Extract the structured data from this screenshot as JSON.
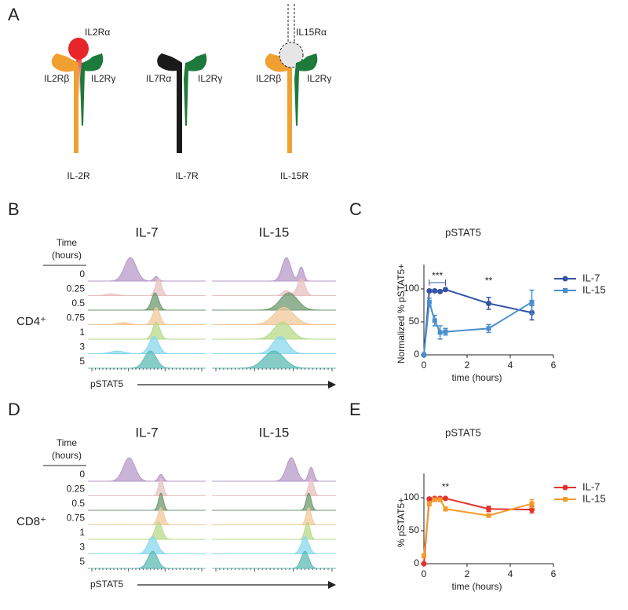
{
  "panel_a": {
    "letter": "A",
    "receptors": [
      {
        "name": "IL-2R",
        "labels": [
          "IL2Rα",
          "IL2Rβ",
          "IL2Rγ"
        ]
      },
      {
        "name": "IL-7R",
        "labels": [
          "IL7Rα",
          "IL2Rγ"
        ]
      },
      {
        "name": "IL-15R",
        "labels": [
          "IL15Rα",
          "IL2Rβ",
          "IL2Rγ"
        ]
      }
    ]
  },
  "panel_b": {
    "letter": "B",
    "cell": "CD4⁺",
    "columns": [
      "IL-7",
      "IL-15"
    ],
    "time_header": [
      "Time",
      "(hours)"
    ],
    "times": [
      "0",
      "0.25",
      "0.5",
      "0.75",
      "1",
      "3",
      "5"
    ],
    "axis_label": "pSTAT5"
  },
  "panel_d": {
    "letter": "D",
    "cell": "CD8⁺",
    "columns": [
      "IL-7",
      "IL-15"
    ],
    "time_header": [
      "Time",
      "(hours)"
    ],
    "times": [
      "0",
      "0.25",
      "0.5",
      "0.75",
      "1",
      "3",
      "5"
    ],
    "axis_label": "pSTAT5"
  },
  "chart_data": [
    {
      "type": "line",
      "letter": "C",
      "title": "pSTAT5",
      "xlabel": "time (hours)",
      "ylabel": "Normalized % pSTAT5+",
      "x": [
        0,
        0.25,
        0.5,
        0.75,
        1,
        3,
        5
      ],
      "xlim": [
        0,
        6
      ],
      "xticks": [
        0,
        2,
        4,
        6
      ],
      "ylim": [
        0,
        125
      ],
      "yticks": [
        0,
        50,
        100
      ],
      "annotations": [
        "***",
        "**"
      ],
      "series": [
        {
          "name": "IL-7",
          "color": "#3553a4",
          "values": [
            0,
            97,
            97,
            96,
            99,
            78,
            64
          ],
          "errors": [
            0,
            2,
            2,
            2,
            2,
            9,
            11
          ]
        },
        {
          "name": "IL-15",
          "color": "#4a8fcc",
          "values": [
            0,
            80,
            52,
            34,
            35,
            40,
            80
          ],
          "errors": [
            0,
            6,
            8,
            10,
            5,
            6,
            18
          ]
        }
      ]
    },
    {
      "type": "line",
      "letter": "E",
      "title": "pSTAT5",
      "xlabel": "time (hours)",
      "ylabel": "% pSTAT5+",
      "x": [
        0,
        0.25,
        0.5,
        0.75,
        1,
        3,
        5
      ],
      "xlim": [
        0,
        6
      ],
      "xticks": [
        0,
        2,
        4,
        6
      ],
      "ylim": [
        0,
        125
      ],
      "yticks": [
        0,
        50,
        100
      ],
      "annotations": [
        "**"
      ],
      "series": [
        {
          "name": "IL-7",
          "color": "#e3322b",
          "values": [
            0,
            98,
            99,
            99,
            99,
            83,
            82
          ],
          "errors": [
            0,
            2,
            1,
            1,
            1,
            4,
            5
          ]
        },
        {
          "name": "IL-15",
          "color": "#f29b2d",
          "values": [
            12,
            91,
            97,
            97,
            83,
            73,
            91
          ],
          "errors": [
            3,
            3,
            2,
            2,
            3,
            2,
            6
          ]
        }
      ]
    }
  ]
}
